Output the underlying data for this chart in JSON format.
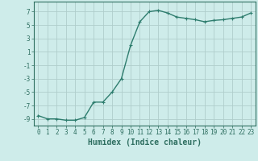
{
  "x": [
    0,
    1,
    2,
    3,
    4,
    5,
    6,
    7,
    8,
    9,
    10,
    11,
    12,
    13,
    14,
    15,
    16,
    17,
    18,
    19,
    20,
    21,
    22,
    23
  ],
  "y": [
    -8.5,
    -9.0,
    -9.0,
    -9.2,
    -9.2,
    -8.8,
    -6.5,
    -6.5,
    -5.0,
    -3.0,
    2.0,
    5.5,
    7.0,
    7.2,
    6.8,
    6.2,
    6.0,
    5.8,
    5.5,
    5.7,
    5.8,
    6.0,
    6.2,
    6.8
  ],
  "line_color": "#2e7d6e",
  "marker": "+",
  "marker_size": 3,
  "bg_color": "#ceecea",
  "grid_color": "#b0cecb",
  "xlabel": "Humidex (Indice chaleur)",
  "xlim": [
    -0.5,
    23.5
  ],
  "ylim": [
    -10,
    8.5
  ],
  "yticks": [
    -9,
    -7,
    -5,
    -3,
    -1,
    1,
    3,
    5,
    7
  ],
  "tick_color": "#2e6e60",
  "label_color": "#2e6e60",
  "spine_color": "#2e6e60",
  "xlabel_fontsize": 7,
  "tick_fontsize": 5.5,
  "linewidth": 1.0
}
